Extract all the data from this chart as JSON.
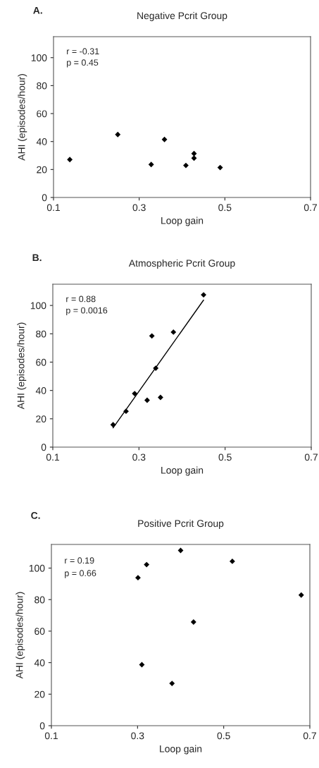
{
  "chart_data": [
    {
      "type": "scatter",
      "title": "Negative Pcrit Group",
      "xlabel": "Loop gain",
      "ylabel": "AHI (episodes/hour)",
      "annotations": [
        "A.",
        "r = -0.31",
        "p = 0.45"
      ],
      "xlim": [
        0.1,
        0.7
      ],
      "xticks": [
        0.1,
        0.3,
        0.5,
        0.7
      ],
      "ylim": [
        0,
        115
      ],
      "yticks": [
        0,
        20,
        40,
        60,
        80,
        100
      ],
      "marker": "diamond",
      "grid": false,
      "series": [
        {
          "color": "#000000",
          "x": [
            0.138,
            0.25,
            0.328,
            0.359,
            0.409,
            0.428,
            0.428,
            0.489
          ],
          "values": [
            27.1,
            45,
            23.6,
            41.5,
            22.9,
            31.4,
            28.1,
            21.4
          ]
        }
      ]
    },
    {
      "type": "scatter",
      "title": "Atmospheric Pcrit Group",
      "xlabel": "Loop gain",
      "ylabel": "AHI (episodes/hour)",
      "annotations": [
        "B.",
        "r = 0.88",
        "p = 0.0016"
      ],
      "xlim": [
        0.1,
        0.7
      ],
      "xticks": [
        0.1,
        0.3,
        0.5,
        0.7
      ],
      "ylim": [
        0,
        115
      ],
      "yticks": [
        0,
        20,
        40,
        60,
        80,
        100
      ],
      "marker": "diamond",
      "grid": false,
      "series": [
        {
          "color": "#000000",
          "x": [
            0.24,
            0.27,
            0.29,
            0.319,
            0.33,
            0.339,
            0.35,
            0.38,
            0.45
          ],
          "values": [
            15.8,
            25.3,
            37.8,
            33.1,
            78.5,
            55.7,
            35.1,
            81.2,
            107.5
          ]
        },
        {
          "type": "line",
          "marker": "none",
          "color": "#000000",
          "x": [
            0.24,
            0.45
          ],
          "values": [
            13.6,
            103.8
          ]
        }
      ]
    },
    {
      "type": "scatter",
      "title": "Positive Pcrit Group",
      "xlabel": "Loop gain",
      "ylabel": "AHI (episodes/hour)",
      "annotations": [
        "C.",
        "r = 0.19",
        "p = 0.66"
      ],
      "xlim": [
        0.1,
        0.7
      ],
      "xticks": [
        0.1,
        0.3,
        0.5,
        0.7
      ],
      "ylim": [
        0,
        115
      ],
      "yticks": [
        0,
        20,
        40,
        60,
        80,
        100
      ],
      "marker": "diamond",
      "grid": false,
      "series": [
        {
          "color": "#000000",
          "x": [
            0.301,
            0.321,
            0.31,
            0.38,
            0.4,
            0.43,
            0.52,
            0.68
          ],
          "values": [
            93.9,
            102.2,
            38.7,
            26.8,
            111.2,
            65.8,
            104.3,
            82.9
          ]
        }
      ]
    }
  ]
}
